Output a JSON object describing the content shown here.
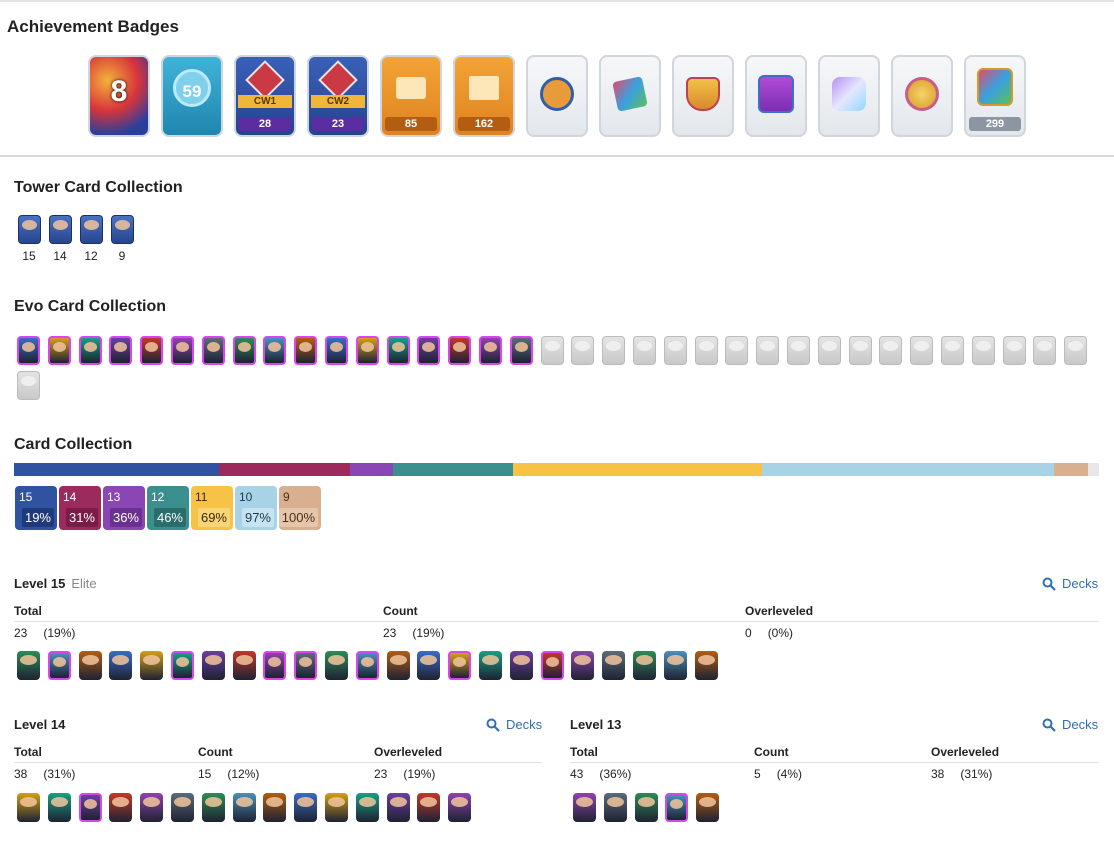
{
  "achievements": {
    "title": "Achievement Badges",
    "badges": [
      {
        "name": "years-played-badge",
        "value": "8",
        "strip": ""
      },
      {
        "name": "level-badge",
        "value": "59",
        "strip": ""
      },
      {
        "name": "clan-war-1-badge",
        "value": "28",
        "strip": "CW1"
      },
      {
        "name": "clan-war-2-badge",
        "value": "23",
        "strip": "CW2"
      },
      {
        "name": "tickets-badge",
        "value": "85",
        "strip": ""
      },
      {
        "name": "crown-banner-badge",
        "value": "162",
        "strip": ""
      },
      {
        "name": "skull-medal-badge",
        "value": "",
        "strip": ""
      },
      {
        "name": "cards-badge",
        "value": "",
        "strip": ""
      },
      {
        "name": "crown-shield-badge",
        "value": "",
        "strip": ""
      },
      {
        "name": "purple-king-badge",
        "value": "",
        "strip": ""
      },
      {
        "name": "crystal-cards-badge",
        "value": "",
        "strip": ""
      },
      {
        "name": "gold-medal-badge",
        "value": "",
        "strip": ""
      },
      {
        "name": "collection-badge",
        "value": "299",
        "strip": ""
      }
    ]
  },
  "tower": {
    "title": "Tower Card Collection",
    "cards": [
      {
        "name": "tower-card-princess",
        "level": "15"
      },
      {
        "name": "tower-card-cannoneer",
        "level": "14"
      },
      {
        "name": "tower-card-dagger-duchess",
        "level": "12"
      },
      {
        "name": "tower-card-royal-chef",
        "level": "9"
      }
    ]
  },
  "evo": {
    "title": "Evo Card Collection",
    "owned_count": 17,
    "locked_count": 19
  },
  "collection": {
    "title": "Card Collection",
    "colors": {
      "l15": "#2f52a1",
      "l14": "#9c2a5c",
      "l13": "#8b46b5",
      "l12": "#3b8f8e",
      "l11": "#f6c347",
      "l10": "#a8d3e6",
      "l9": "#d8b090"
    },
    "levels": [
      {
        "label": "15",
        "percent": "19%"
      },
      {
        "label": "14",
        "percent": "31%"
      },
      {
        "label": "13",
        "percent": "36%"
      },
      {
        "label": "12",
        "percent": "46%"
      },
      {
        "label": "11",
        "percent": "69%"
      },
      {
        "label": "10",
        "percent": "97%"
      },
      {
        "label": "9",
        "percent": "100%"
      }
    ]
  },
  "level15": {
    "title": "Level 15",
    "subtitle": "Elite",
    "decks_label": "Decks",
    "headers": {
      "total": "Total",
      "count": "Count",
      "overleveled": "Overleveled"
    },
    "total": "23",
    "total_pct": "(19%)",
    "count": "23",
    "count_pct": "(19%)",
    "over": "0",
    "over_pct": "(0%)"
  },
  "level14": {
    "title": "Level 14",
    "decks_label": "Decks",
    "headers": {
      "total": "Total",
      "count": "Count",
      "overleveled": "Overleveled"
    },
    "total": "38",
    "total_pct": "(31%)",
    "count": "15",
    "count_pct": "(12%)",
    "over": "23",
    "over_pct": "(19%)"
  },
  "level13": {
    "title": "Level 13",
    "decks_label": "Decks",
    "headers": {
      "total": "Total",
      "count": "Count",
      "overleveled": "Overleveled"
    },
    "total": "43",
    "total_pct": "(36%)",
    "count": "5",
    "count_pct": "(4%)",
    "over": "38",
    "over_pct": "(31%)"
  }
}
